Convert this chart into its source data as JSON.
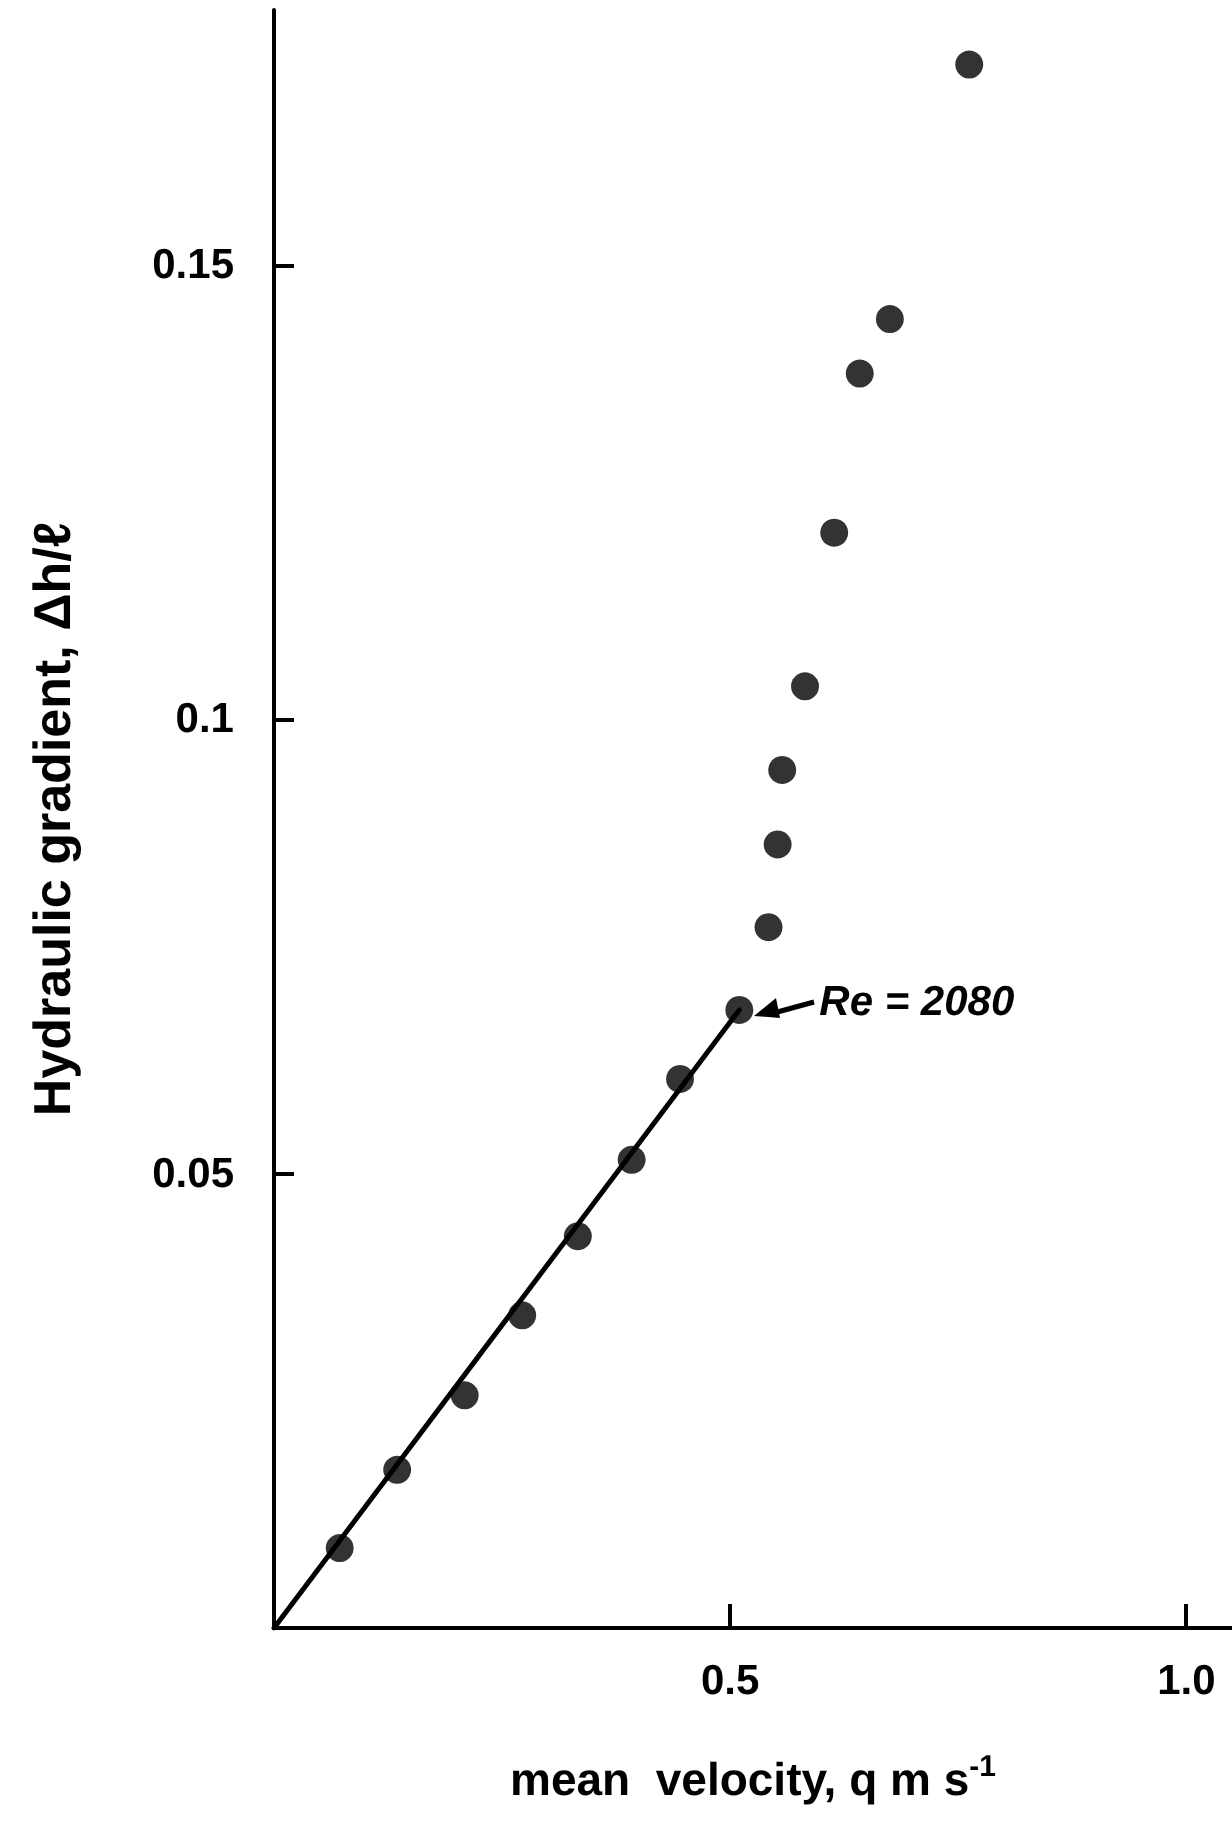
{
  "chart_data": {
    "type": "scatter",
    "xlabel": "mean  velocity, q m s$^{-1}$",
    "ylabel": "Hydraulic gradient, Δh/ℓ",
    "xlim": [
      0,
      1.05
    ],
    "ylim": [
      0,
      0.178
    ],
    "xticks": [
      {
        "value": 0.5,
        "label": "0.5"
      },
      {
        "value": 1,
        "label": "1.0"
      }
    ],
    "yticks": [
      {
        "value": 0.05,
        "label": "0.05"
      },
      {
        "value": 0.1,
        "label": "0.1"
      },
      {
        "value": 0.15,
        "label": "0.15"
      }
    ],
    "marker": "circle",
    "series": [
      {
        "color": "#000000",
        "x": [
          0.072,
          0.135,
          0.209,
          0.272,
          0.333,
          0.392,
          0.445,
          0.51,
          0.542,
          0.552,
          0.557,
          0.582,
          0.614,
          0.642,
          0.675,
          0.762
        ],
        "values": [
          0.0088,
          0.0174,
          0.0256,
          0.0344,
          0.0431,
          0.0515,
          0.0604,
          0.068,
          0.0771,
          0.0862,
          0.0944,
          0.1036,
          0.1205,
          0.138,
          0.144,
          0.172
        ]
      },
      {
        "type": "line",
        "color": "#000000",
        "line_style": "solid",
        "marker": "none",
        "x": [
          0,
          0.51
        ],
        "values": [
          0,
          0.068
        ]
      }
    ],
    "annotations": [
      {
        "text": "Re = 2080",
        "x": 0.51,
        "y": 0.068
      }
    ]
  }
}
